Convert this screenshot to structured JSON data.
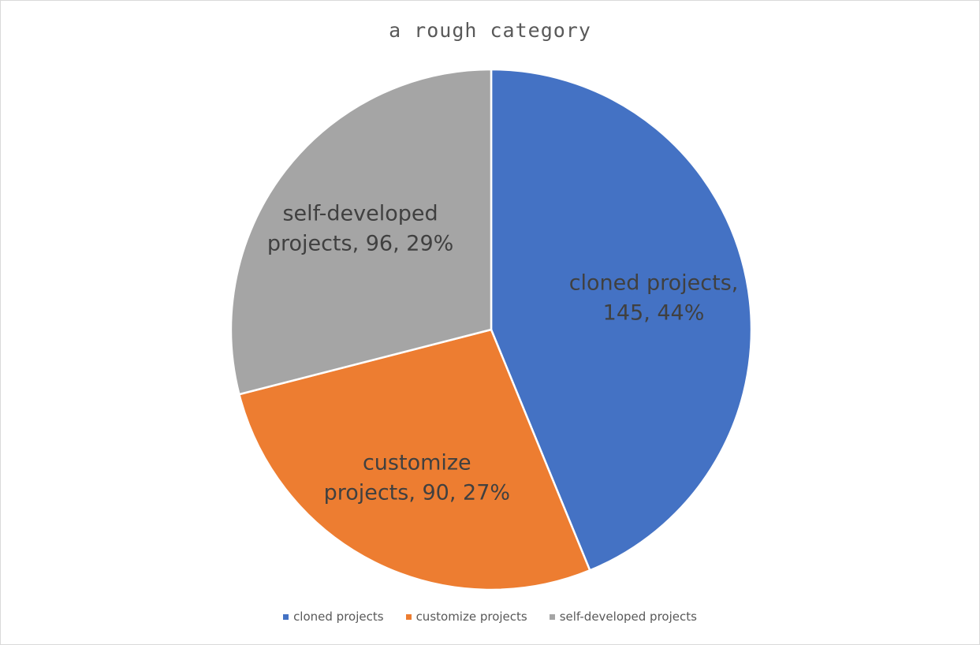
{
  "chart_data": {
    "type": "pie",
    "title": "a rough category",
    "categories": [
      "cloned projects",
      "customize projects",
      "self-developed projects"
    ],
    "values": [
      145,
      90,
      96
    ],
    "percents": [
      "44%",
      "27%",
      "29%"
    ],
    "label_lines": [
      [
        "cloned projects,",
        "145, 44%"
      ],
      [
        "customize",
        "projects, 90, 27%"
      ],
      [
        "self-developed",
        "projects, 96, 29%"
      ]
    ],
    "colors": [
      "#4472C4",
      "#ED7D31",
      "#A5A5A5"
    ],
    "start_angle_deg": 0,
    "direction": "clockwise",
    "legend": {
      "position": "bottom",
      "items": [
        "cloned projects",
        "customize projects",
        "self-developed projects"
      ]
    }
  }
}
